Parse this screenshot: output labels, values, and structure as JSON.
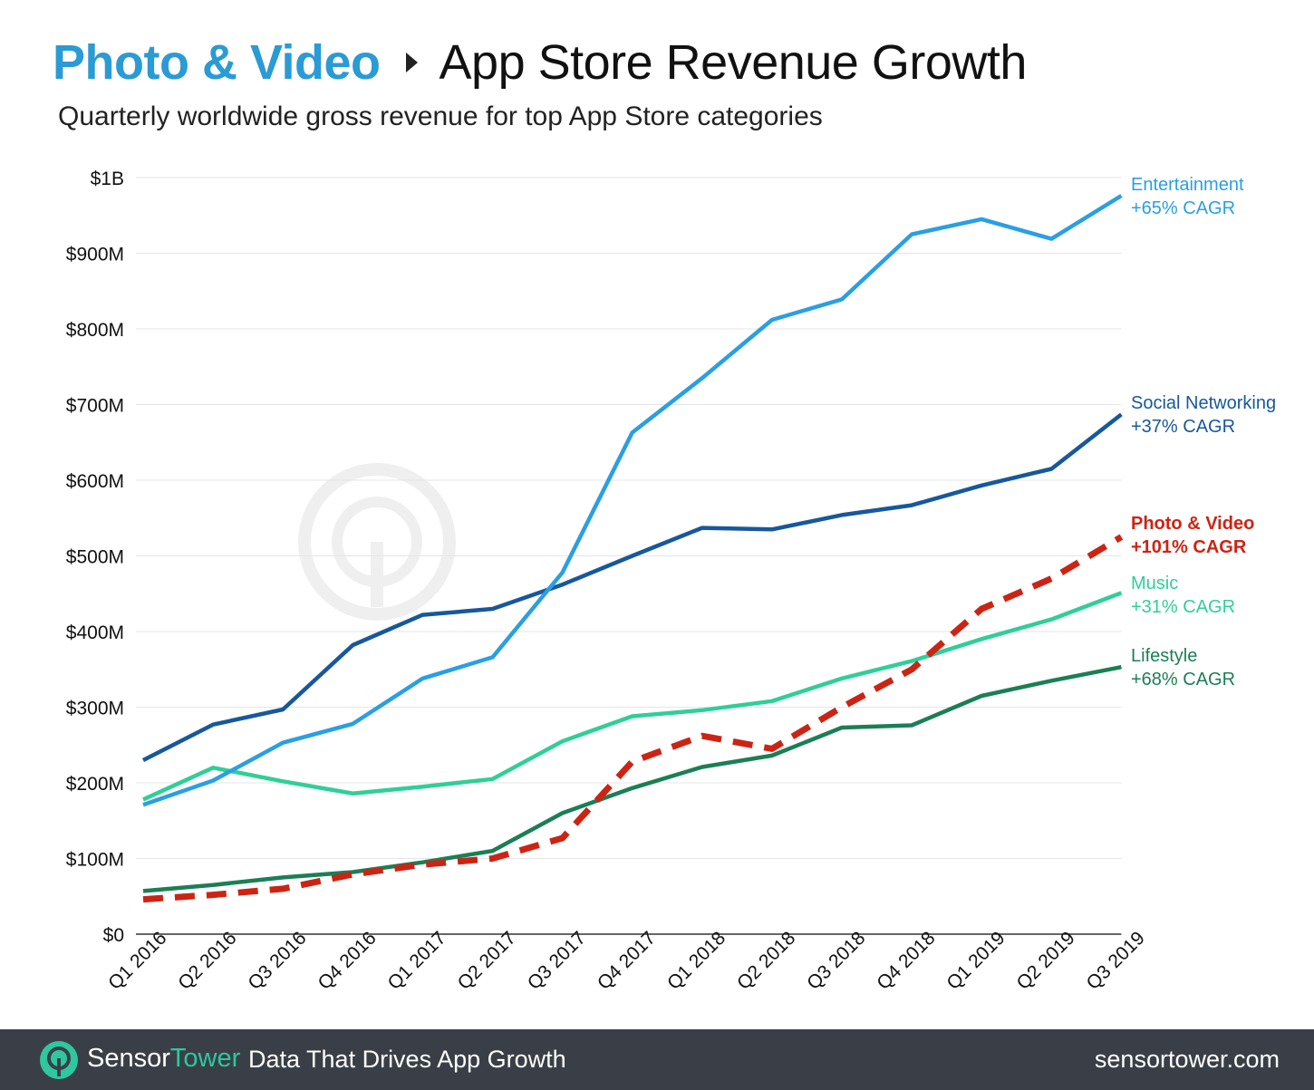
{
  "header": {
    "category": "Photo & Video",
    "title": "App Store Revenue Growth",
    "subtitle": "Quarterly worldwide gross revenue for top App Store categories"
  },
  "colors": {
    "entertainment": "#2a9fe3",
    "social": "#17589c",
    "photo": "#cc2414",
    "music": "#2fcf97",
    "lifestyle": "#1b7f55",
    "title_accent": "#2a9bd4",
    "footer_bg": "#3a3f47",
    "brand_accent": "#2ec7a0"
  },
  "chart_data": {
    "type": "line",
    "categories": [
      "Q1 2016",
      "Q2 2016",
      "Q3 2016",
      "Q4 2016",
      "Q1 2017",
      "Q2 2017",
      "Q3 2017",
      "Q4 2017",
      "Q1 2018",
      "Q2 2018",
      "Q3 2018",
      "Q4 2018",
      "Q1 2019",
      "Q2 2019",
      "Q3 2019"
    ],
    "y_tick_labels": [
      "$0",
      "$100M",
      "$200M",
      "$300M",
      "$400M",
      "$500M",
      "$600M",
      "$700M",
      "$800M",
      "$900M",
      "$1B"
    ],
    "ylim": [
      0,
      1000
    ],
    "grid": true,
    "legend": "right, inline at line ends",
    "series": [
      {
        "key": "entertainment",
        "name": "Entertainment",
        "cagr": "+65% CAGR",
        "color": "#2a9fe3",
        "dashed": false,
        "values": [
          171,
          203,
          253,
          278,
          338,
          366,
          478,
          663,
          735,
          812,
          839,
          925,
          945,
          919,
          976
        ]
      },
      {
        "key": "social",
        "name": "Social Networking",
        "cagr": "+37% CAGR",
        "color": "#17589c",
        "dashed": false,
        "values": [
          230,
          277,
          297,
          382,
          422,
          430,
          462,
          500,
          537,
          535,
          554,
          567,
          593,
          615,
          687
        ]
      },
      {
        "key": "photo",
        "name": "Photo & Video",
        "cagr": "+101% CAGR",
        "color": "#cc2414",
        "dashed": true,
        "values": [
          46,
          52,
          60,
          79,
          92,
          100,
          127,
          228,
          262,
          245,
          300,
          350,
          430,
          470,
          525
        ]
      },
      {
        "key": "music",
        "name": "Music",
        "cagr": "+31% CAGR",
        "color": "#2fcf97",
        "dashed": false,
        "values": [
          178,
          220,
          202,
          186,
          195,
          205,
          255,
          288,
          296,
          308,
          338,
          361,
          390,
          416,
          451
        ]
      },
      {
        "key": "lifestyle",
        "name": "Lifestyle",
        "cagr": "+68% CAGR",
        "color": "#1b7f55",
        "dashed": false,
        "values": [
          57,
          65,
          75,
          82,
          95,
          110,
          160,
          193,
          221,
          236,
          273,
          276,
          315,
          335,
          353
        ]
      }
    ]
  },
  "footer": {
    "logo_part1": "Sensor",
    "logo_part2": "Tower",
    "tagline": "Data That Drives App Growth",
    "site": "sensortower.com"
  }
}
